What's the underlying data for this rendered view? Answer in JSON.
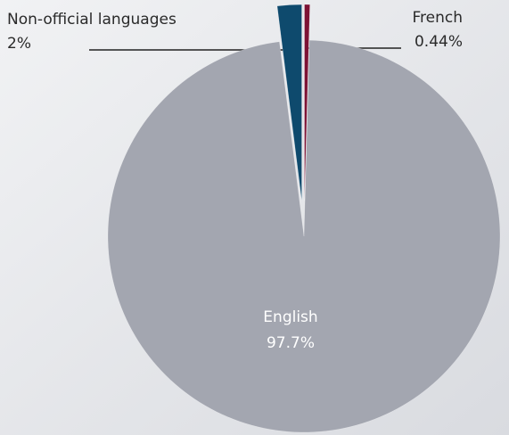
{
  "chart_data": {
    "type": "pie",
    "categories": [
      "French",
      "English",
      "Non-official languages"
    ],
    "values": [
      0.44,
      97.7,
      2
    ],
    "value_labels": [
      "0.44%",
      "97.7%",
      "2%"
    ],
    "colors": [
      "#7d1234",
      "#a3a6b0",
      "#0e4a6d"
    ],
    "explode": [
      true,
      false,
      true
    ]
  }
}
